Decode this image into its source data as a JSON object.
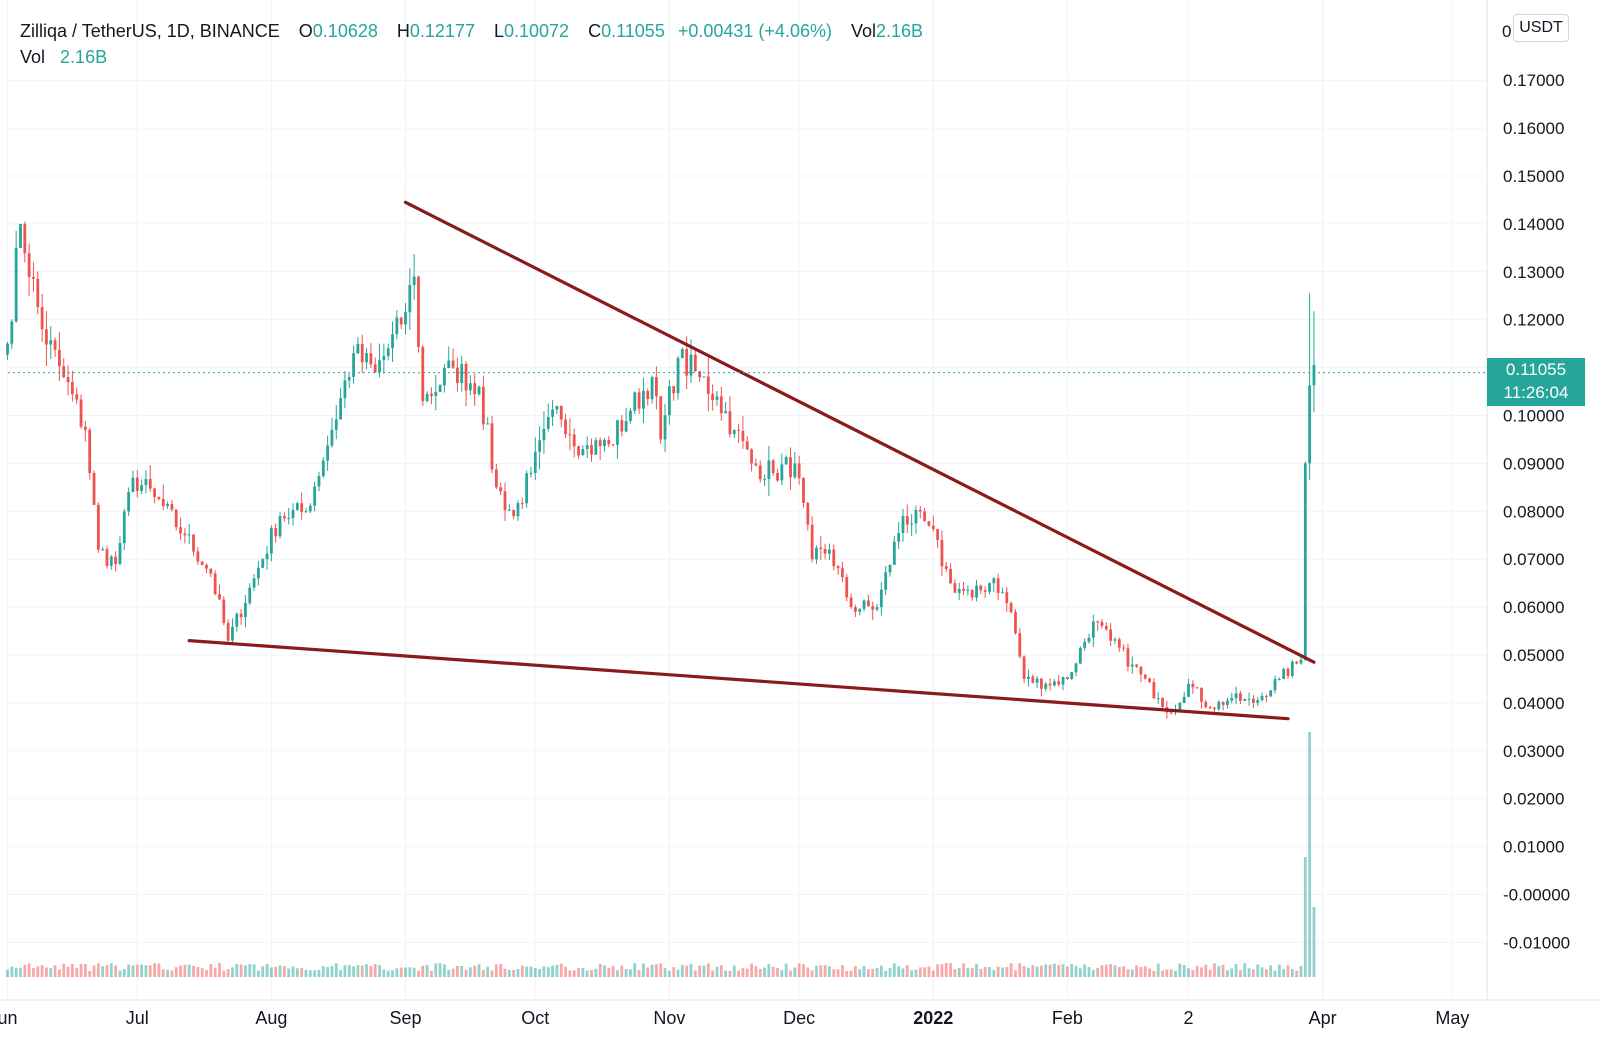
{
  "legend": {
    "symbol": "Zilliqa / TetherUS, 1D, BINANCE",
    "open_label": "O",
    "open": "0.10628",
    "high_label": "H",
    "high": "0.12177",
    "low_label": "L",
    "low": "0.10072",
    "close_label": "C",
    "close": "0.11055",
    "change": "+0.00431 (+4.06%)",
    "vol_label": "Vol",
    "vol": "2.16B",
    "vol_row_label": "Vol",
    "vol_row_value": "2.16B"
  },
  "price_scale": {
    "unit": "USDT",
    "top_label": "0",
    "last_price": "0.11055",
    "countdown": "11:26:04"
  },
  "colors": {
    "up": "#26a69a",
    "down": "#ef5350",
    "trendline": "#8b1a1a",
    "grid": "#f0f3fa",
    "price_line": "#26a69a",
    "text": "#131722"
  },
  "chart_data": {
    "type": "candlestick",
    "title": "Zilliqa / TetherUS, 1D, BINANCE",
    "ylabel": "USDT",
    "ylim": [
      -0.0165,
      0.1815
    ],
    "y_ticks": [
      {
        "value": 0.17,
        "label": "0.17000"
      },
      {
        "value": 0.16,
        "label": "0.16000"
      },
      {
        "value": 0.15,
        "label": "0.15000"
      },
      {
        "value": 0.14,
        "label": "0.14000"
      },
      {
        "value": 0.13,
        "label": "0.13000"
      },
      {
        "value": 0.12,
        "label": "0.12000"
      },
      {
        "value": 0.11,
        "label": "0.11000"
      },
      {
        "value": 0.1,
        "label": "0.10000"
      },
      {
        "value": 0.09,
        "label": "0.09000"
      },
      {
        "value": 0.08,
        "label": "0.08000"
      },
      {
        "value": 0.07,
        "label": "0.07000"
      },
      {
        "value": 0.06,
        "label": "0.06000"
      },
      {
        "value": 0.05,
        "label": "0.05000"
      },
      {
        "value": 0.04,
        "label": "0.04000"
      },
      {
        "value": 0.03,
        "label": "0.03000"
      },
      {
        "value": 0.02,
        "label": "0.02000"
      },
      {
        "value": 0.01,
        "label": "0.01000"
      },
      {
        "value": 0.0,
        "label": "-0.00000"
      },
      {
        "value": -0.01,
        "label": "-0.01000"
      }
    ],
    "x_ticks": [
      {
        "date": "2021-06-01",
        "label": "un"
      },
      {
        "date": "2021-07-01",
        "label": "Jul"
      },
      {
        "date": "2021-08-01",
        "label": "Aug"
      },
      {
        "date": "2021-09-01",
        "label": "Sep"
      },
      {
        "date": "2021-10-01",
        "label": "Oct"
      },
      {
        "date": "2021-11-01",
        "label": "Nov"
      },
      {
        "date": "2021-12-01",
        "label": "Dec"
      },
      {
        "date": "2022-01-01",
        "label": "2022",
        "bold": true
      },
      {
        "date": "2022-02-01",
        "label": "Feb"
      },
      {
        "date": "2022-03-01",
        "label": "2"
      },
      {
        "date": "2022-04-01",
        "label": "Apr"
      },
      {
        "date": "2022-05-01",
        "label": "May"
      }
    ],
    "last_price": 0.11055,
    "anchors": [
      [
        "2021-06-01",
        0.115
      ],
      [
        "2021-06-04",
        0.14
      ],
      [
        "2021-06-09",
        0.118
      ],
      [
        "2021-06-14",
        0.108
      ],
      [
        "2021-06-19",
        0.097
      ],
      [
        "2021-06-22",
        0.072
      ],
      [
        "2021-06-26",
        0.069
      ],
      [
        "2021-06-30",
        0.087
      ],
      [
        "2021-07-05",
        0.083
      ],
      [
        "2021-07-12",
        0.075
      ],
      [
        "2021-07-18",
        0.067
      ],
      [
        "2021-07-22",
        0.053
      ],
      [
        "2021-07-28",
        0.066
      ],
      [
        "2021-08-03",
        0.079
      ],
      [
        "2021-08-09",
        0.08
      ],
      [
        "2021-08-15",
        0.097
      ],
      [
        "2021-08-20",
        0.113
      ],
      [
        "2021-08-25",
        0.109
      ],
      [
        "2021-08-31",
        0.119
      ],
      [
        "2021-09-03",
        0.129
      ],
      [
        "2021-09-05",
        0.103
      ],
      [
        "2021-09-12",
        0.11
      ],
      [
        "2021-09-18",
        0.106
      ],
      [
        "2021-09-22",
        0.085
      ],
      [
        "2021-09-26",
        0.079
      ],
      [
        "2021-09-30",
        0.088
      ],
      [
        "2021-10-06",
        0.102
      ],
      [
        "2021-10-12",
        0.093
      ],
      [
        "2021-10-18",
        0.094
      ],
      [
        "2021-10-23",
        0.101
      ],
      [
        "2021-10-28",
        0.108
      ],
      [
        "2021-10-30",
        0.095
      ],
      [
        "2021-11-03",
        0.112
      ],
      [
        "2021-11-08",
        0.108
      ],
      [
        "2021-11-12",
        0.104
      ],
      [
        "2021-11-16",
        0.097
      ],
      [
        "2021-11-20",
        0.09
      ],
      [
        "2021-11-25",
        0.088
      ],
      [
        "2021-11-30",
        0.09
      ],
      [
        "2021-12-04",
        0.07
      ],
      [
        "2021-12-08",
        0.072
      ],
      [
        "2021-12-13",
        0.06
      ],
      [
        "2021-12-19",
        0.06
      ],
      [
        "2021-12-25",
        0.079
      ],
      [
        "2021-12-31",
        0.077
      ],
      [
        "2022-01-05",
        0.065
      ],
      [
        "2022-01-10",
        0.062
      ],
      [
        "2022-01-15",
        0.066
      ],
      [
        "2022-01-19",
        0.059
      ],
      [
        "2022-01-22",
        0.045
      ],
      [
        "2022-01-27",
        0.044
      ],
      [
        "2022-02-01",
        0.045
      ],
      [
        "2022-02-07",
        0.057
      ],
      [
        "2022-02-11",
        0.053
      ],
      [
        "2022-02-16",
        0.048
      ],
      [
        "2022-02-22",
        0.041
      ],
      [
        "2022-02-25",
        0.038
      ],
      [
        "2022-03-01",
        0.044
      ],
      [
        "2022-03-06",
        0.039
      ],
      [
        "2022-03-11",
        0.041
      ],
      [
        "2022-03-16",
        0.04
      ],
      [
        "2022-03-22",
        0.045
      ],
      [
        "2022-03-27",
        0.049
      ],
      [
        "2022-03-28",
        0.09
      ],
      [
        "2022-03-29",
        0.1063
      ],
      [
        "2022-03-30",
        0.11055
      ]
    ],
    "annotations": [
      {
        "type": "trendline",
        "from": [
          "2021-09-01",
          0.1445
        ],
        "to": [
          "2022-03-30",
          0.0485
        ]
      },
      {
        "type": "trendline",
        "from": [
          "2021-07-13",
          0.053
        ],
        "to": [
          "2022-03-24",
          0.0367
        ]
      }
    ]
  }
}
